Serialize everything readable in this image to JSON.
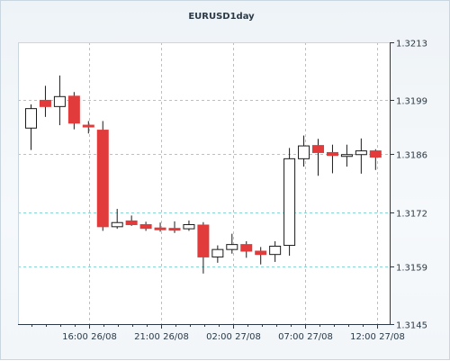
{
  "chart_data": {
    "type": "candlestick",
    "title": "EURUSD1day",
    "y_axis": {
      "range": [
        1.3145,
        1.3213
      ],
      "ticks": [
        "1.3213",
        "1.3199",
        "1.3186",
        "1.3172",
        "1.3159",
        "1.3145"
      ],
      "position": "right"
    },
    "x_axis": {
      "ticks": [
        "16:00 26/08",
        "21:00 26/08",
        "02:00 27/08",
        "07:00 27/08",
        "12:00 27/08"
      ]
    },
    "grid": true,
    "colors": {
      "bull": "#ffffff",
      "bear": "#e23b3b",
      "outline": "#1a1a1a",
      "grid": "#8fd3d3"
    },
    "candles": [
      {
        "open": 1.31923,
        "close": 1.3197,
        "high": 1.3198,
        "low": 1.3187
      },
      {
        "open": 1.3199,
        "close": 1.31975,
        "high": 1.32025,
        "low": 1.3195
      },
      {
        "open": 1.31975,
        "close": 1.31999,
        "high": 1.3205,
        "low": 1.3193
      },
      {
        "open": 1.32,
        "close": 1.31935,
        "high": 1.3201,
        "low": 1.3192
      },
      {
        "open": 1.3193,
        "close": 1.31926,
        "high": 1.3194,
        "low": 1.3191
      },
      {
        "open": 1.31918,
        "close": 1.31685,
        "high": 1.3194,
        "low": 1.31675
      },
      {
        "open": 1.31685,
        "close": 1.31695,
        "high": 1.31728,
        "low": 1.3168
      },
      {
        "open": 1.31699,
        "close": 1.3169,
        "high": 1.31712,
        "low": 1.31687
      },
      {
        "open": 1.3169,
        "close": 1.31681,
        "high": 1.31697,
        "low": 1.31675
      },
      {
        "open": 1.31682,
        "close": 1.31681,
        "high": 1.31695,
        "low": 1.31673
      },
      {
        "open": 1.31681,
        "close": 1.3168,
        "high": 1.31698,
        "low": 1.3167
      },
      {
        "open": 1.3168,
        "close": 1.3169,
        "high": 1.317,
        "low": 1.31675
      },
      {
        "open": 1.31689,
        "close": 1.31612,
        "high": 1.31696,
        "low": 1.31572
      },
      {
        "open": 1.31612,
        "close": 1.3163,
        "high": 1.3164,
        "low": 1.31598
      },
      {
        "open": 1.3163,
        "close": 1.31642,
        "high": 1.31668,
        "low": 1.3162
      },
      {
        "open": 1.31642,
        "close": 1.31626,
        "high": 1.3165,
        "low": 1.3161
      },
      {
        "open": 1.31626,
        "close": 1.31618,
        "high": 1.31636,
        "low": 1.31594
      },
      {
        "open": 1.31618,
        "close": 1.31638,
        "high": 1.3165,
        "low": 1.316
      },
      {
        "open": 1.3164,
        "close": 1.31849,
        "high": 1.31875,
        "low": 1.31615
      },
      {
        "open": 1.31849,
        "close": 1.3188,
        "high": 1.31905,
        "low": 1.3183
      },
      {
        "open": 1.31881,
        "close": 1.31864,
        "high": 1.31897,
        "low": 1.31808
      },
      {
        "open": 1.31864,
        "close": 1.31857,
        "high": 1.31883,
        "low": 1.31814
      },
      {
        "open": 1.31857,
        "close": 1.31859,
        "high": 1.31883,
        "low": 1.3183
      },
      {
        "open": 1.31859,
        "close": 1.31868,
        "high": 1.31898,
        "low": 1.31813
      },
      {
        "open": 1.31868,
        "close": 1.31853,
        "high": 1.31872,
        "low": 1.31822
      }
    ]
  }
}
